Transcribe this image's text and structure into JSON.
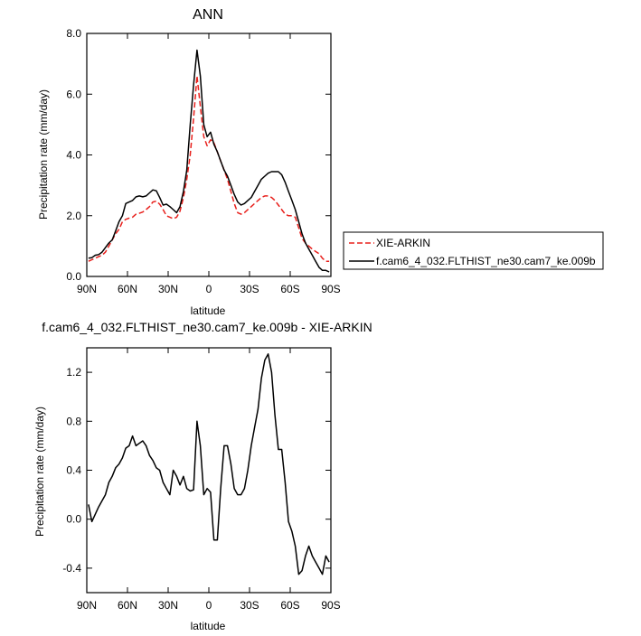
{
  "chart_data": [
    {
      "type": "line",
      "title": "ANN",
      "xlabel": "latitude",
      "ylabel": "Precipitation rate (mm/day)",
      "xlim": [
        -90,
        90
      ],
      "ylim": [
        0,
        8
      ],
      "x_ticks": [
        -90,
        -60,
        -30,
        0,
        30,
        60,
        90
      ],
      "x_tick_labels": [
        "90N",
        "60N",
        "30N",
        "0",
        "30S",
        "60S",
        "90S"
      ],
      "y_ticks": [
        0,
        2,
        4,
        6,
        8
      ],
      "y_tick_labels": [
        "0.0",
        "2.0",
        "4.0",
        "6.0",
        "8.0"
      ],
      "grid": false,
      "legend_position": "right",
      "series": [
        {
          "name": "XIE-ARKIN",
          "color": "#e8201c",
          "dash": "dashed",
          "x": [
            -88.75,
            -86.25,
            -83.75,
            -81.25,
            -78.75,
            -76.25,
            -73.75,
            -71.25,
            -68.75,
            -66.25,
            -63.75,
            -61.25,
            -58.75,
            -56.25,
            -53.75,
            -51.25,
            -48.75,
            -46.25,
            -43.75,
            -41.25,
            -38.75,
            -36.25,
            -33.75,
            -31.25,
            -28.75,
            -26.25,
            -23.75,
            -21.25,
            -18.75,
            -16.25,
            -13.75,
            -11.25,
            -8.75,
            -6.25,
            -3.75,
            -1.25,
            1.25,
            3.75,
            6.25,
            8.75,
            11.25,
            13.75,
            16.25,
            18.75,
            21.25,
            23.75,
            26.25,
            28.75,
            31.25,
            33.75,
            36.25,
            38.75,
            41.25,
            43.75,
            46.25,
            48.75,
            51.25,
            53.75,
            56.25,
            58.75,
            61.25,
            63.75,
            66.25,
            68.75,
            71.25,
            73.75,
            76.25,
            78.75,
            81.25,
            83.75,
            86.25,
            88.75
          ],
          "y": [
            0.5,
            0.55,
            0.6,
            0.65,
            0.7,
            0.8,
            1.0,
            1.2,
            1.4,
            1.55,
            1.8,
            1.88,
            1.92,
            1.95,
            2.05,
            2.08,
            2.12,
            2.2,
            2.3,
            2.45,
            2.48,
            2.38,
            2.2,
            2.0,
            1.95,
            1.9,
            1.95,
            2.15,
            2.6,
            3.2,
            4.0,
            5.2,
            6.6,
            5.6,
            4.6,
            4.3,
            4.5,
            4.4,
            4.1,
            3.8,
            3.5,
            3.2,
            2.8,
            2.4,
            2.1,
            2.05,
            2.1,
            2.2,
            2.3,
            2.4,
            2.5,
            2.6,
            2.65,
            2.65,
            2.6,
            2.5,
            2.35,
            2.2,
            2.05,
            2.0,
            2.0,
            1.95,
            1.6,
            1.25,
            1.1,
            1.0,
            0.9,
            0.82,
            0.75,
            0.6,
            0.5,
            0.5
          ]
        },
        {
          "name": "f.cam6_4_032.FLTHIST_ne30.cam7_ke.009b",
          "color": "#000000",
          "dash": "solid",
          "x": [
            -88.75,
            -86.25,
            -83.75,
            -81.25,
            -78.75,
            -76.25,
            -73.75,
            -71.25,
            -68.75,
            -66.25,
            -63.75,
            -61.25,
            -58.75,
            -56.25,
            -53.75,
            -51.25,
            -48.75,
            -46.25,
            -43.75,
            -41.25,
            -38.75,
            -36.25,
            -33.75,
            -31.25,
            -28.75,
            -26.25,
            -23.75,
            -21.25,
            -18.75,
            -16.25,
            -13.75,
            -11.25,
            -8.75,
            -6.25,
            -3.75,
            -1.25,
            1.25,
            3.75,
            6.25,
            8.75,
            11.25,
            13.75,
            16.25,
            18.75,
            21.25,
            23.75,
            26.25,
            28.75,
            31.25,
            33.75,
            36.25,
            38.75,
            41.25,
            43.75,
            46.25,
            48.75,
            51.25,
            53.75,
            56.25,
            58.75,
            61.25,
            63.75,
            66.25,
            68.75,
            71.25,
            73.75,
            76.25,
            78.75,
            81.25,
            83.75,
            86.25,
            88.75
          ],
          "y": [
            0.6,
            0.62,
            0.7,
            0.72,
            0.8,
            0.95,
            1.1,
            1.2,
            1.5,
            1.8,
            2.0,
            2.4,
            2.45,
            2.5,
            2.62,
            2.65,
            2.62,
            2.65,
            2.75,
            2.85,
            2.82,
            2.6,
            2.35,
            2.38,
            2.3,
            2.2,
            2.1,
            2.3,
            2.8,
            3.5,
            5.0,
            6.3,
            7.45,
            6.6,
            5.0,
            4.6,
            4.75,
            4.35,
            4.1,
            3.8,
            3.5,
            3.3,
            3.0,
            2.7,
            2.45,
            2.35,
            2.4,
            2.5,
            2.6,
            2.8,
            3.0,
            3.2,
            3.3,
            3.4,
            3.45,
            3.45,
            3.45,
            3.35,
            3.1,
            2.8,
            2.5,
            2.2,
            1.8,
            1.4,
            1.1,
            0.9,
            0.7,
            0.5,
            0.3,
            0.2,
            0.2,
            0.15
          ]
        }
      ]
    },
    {
      "type": "line",
      "title": "f.cam6_4_032.FLTHIST_ne30.cam7_ke.009b - XIE-ARKIN",
      "xlabel": "latitude",
      "ylabel": "Precipitation rate (mm/day)",
      "xlim": [
        -90,
        90
      ],
      "ylim": [
        -0.6,
        1.4
      ],
      "x_ticks": [
        -90,
        -60,
        -30,
        0,
        30,
        60,
        90
      ],
      "x_tick_labels": [
        "90N",
        "60N",
        "30N",
        "0",
        "30S",
        "60S",
        "90S"
      ],
      "y_ticks": [
        -0.4,
        0,
        0.4,
        0.8,
        1.2
      ],
      "y_tick_labels": [
        "-0.4",
        "0.0",
        "0.4",
        "0.8",
        "1.2"
      ],
      "grid": false,
      "series": [
        {
          "color": "#000000",
          "dash": "solid",
          "x": [
            -88.75,
            -86.25,
            -81.25,
            -76.25,
            -73.75,
            -71.25,
            -68.75,
            -66.25,
            -63.75,
            -61.25,
            -58.75,
            -56.25,
            -53.75,
            -51.25,
            -48.75,
            -46.25,
            -43.75,
            -41.25,
            -38.75,
            -36.25,
            -33.75,
            -31.25,
            -28.75,
            -26.25,
            -23.75,
            -21.25,
            -18.75,
            -16.25,
            -13.75,
            -11.25,
            -8.75,
            -6.25,
            -3.75,
            -1.25,
            1.25,
            3.75,
            6.25,
            8.75,
            11.25,
            13.75,
            16.25,
            18.75,
            21.25,
            23.75,
            26.25,
            28.75,
            31.25,
            33.75,
            36.25,
            38.75,
            41.25,
            43.75,
            46.25,
            48.75,
            51.25,
            53.75,
            56.25,
            58.75,
            61.25,
            63.75,
            66.25,
            68.75,
            71.25,
            73.75,
            76.25,
            78.75,
            81.25,
            83.75,
            86.25,
            88.75
          ],
          "y": [
            0.12,
            -0.02,
            0.1,
            0.2,
            0.3,
            0.35,
            0.42,
            0.45,
            0.5,
            0.58,
            0.6,
            0.68,
            0.6,
            0.62,
            0.64,
            0.6,
            0.52,
            0.48,
            0.42,
            0.4,
            0.3,
            0.25,
            0.2,
            0.4,
            0.35,
            0.28,
            0.35,
            0.25,
            0.23,
            0.24,
            0.8,
            0.6,
            0.2,
            0.25,
            0.22,
            -0.17,
            -0.17,
            0.25,
            0.6,
            0.6,
            0.45,
            0.25,
            0.2,
            0.2,
            0.25,
            0.4,
            0.6,
            0.75,
            0.9,
            1.15,
            1.3,
            1.35,
            1.2,
            0.85,
            0.57,
            0.57,
            0.3,
            -0.02,
            -0.1,
            -0.22,
            -0.45,
            -0.42,
            -0.3,
            -0.22,
            -0.3,
            -0.35,
            -0.4,
            -0.45,
            -0.3,
            -0.35
          ]
        }
      ]
    }
  ]
}
